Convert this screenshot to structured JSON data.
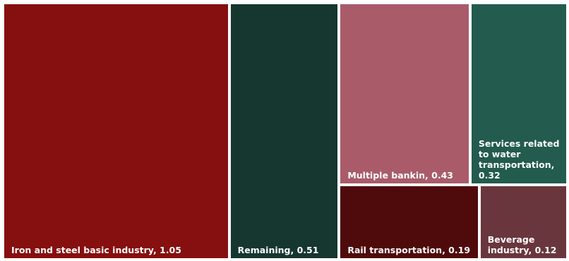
{
  "chart_data": {
    "type": "treemap",
    "title": "",
    "items": [
      {
        "label": "Iron and steel basic industry,  1.05",
        "name": "Iron and steel basic industry",
        "value": 1.05,
        "color": "#85100f"
      },
      {
        "label": "Remaining,  0.51",
        "name": "Remaining",
        "value": 0.51,
        "color": "#163630"
      },
      {
        "label": "Multiple bankin,  0.43",
        "name": "Multiple bankin",
        "value": 0.43,
        "color": "#a95b69"
      },
      {
        "label": "Services related to water transportation,  0.32",
        "name": "Services related to water transportation",
        "value": 0.32,
        "color": "#235b4e"
      },
      {
        "label": "Rail transportation,  0.19",
        "name": "Rail transportation",
        "value": 0.19,
        "color": "#4f0a0c"
      },
      {
        "label": "Beverage industry,  0.12",
        "name": "Beverage industry",
        "value": 0.12,
        "color": "#6a363e"
      }
    ]
  }
}
